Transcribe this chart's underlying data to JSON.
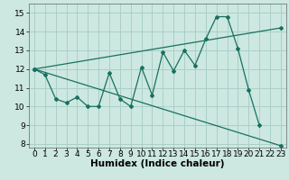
{
  "title": "",
  "xlabel": "Humidex (Indice chaleur)",
  "bg_color": "#cce8e0",
  "grid_color": "#aacfc8",
  "line_color": "#1a7060",
  "xlim": [
    -0.5,
    23.5
  ],
  "ylim": [
    7.8,
    15.5
  ],
  "yticks": [
    8,
    9,
    10,
    11,
    12,
    13,
    14,
    15
  ],
  "xticks": [
    0,
    1,
    2,
    3,
    4,
    5,
    6,
    7,
    8,
    9,
    10,
    11,
    12,
    13,
    14,
    15,
    16,
    17,
    18,
    19,
    20,
    21,
    22,
    23
  ],
  "series1_x": [
    0,
    1,
    2,
    3,
    4,
    5,
    6,
    7,
    8,
    9,
    10,
    11,
    12,
    13,
    14,
    15,
    16,
    17,
    18,
    19,
    20,
    21
  ],
  "series1_y": [
    12.0,
    11.7,
    10.4,
    10.2,
    10.5,
    10.0,
    10.0,
    11.8,
    10.4,
    10.0,
    12.1,
    10.6,
    12.9,
    11.9,
    13.0,
    12.2,
    13.6,
    14.8,
    14.8,
    13.1,
    10.9,
    9.0
  ],
  "series2_x": [
    0,
    23
  ],
  "series2_y": [
    12.0,
    7.9
  ],
  "series3_x": [
    0,
    23
  ],
  "series3_y": [
    12.0,
    14.2
  ],
  "xlabel_fontsize": 7.5,
  "tick_fontsize": 6.5
}
